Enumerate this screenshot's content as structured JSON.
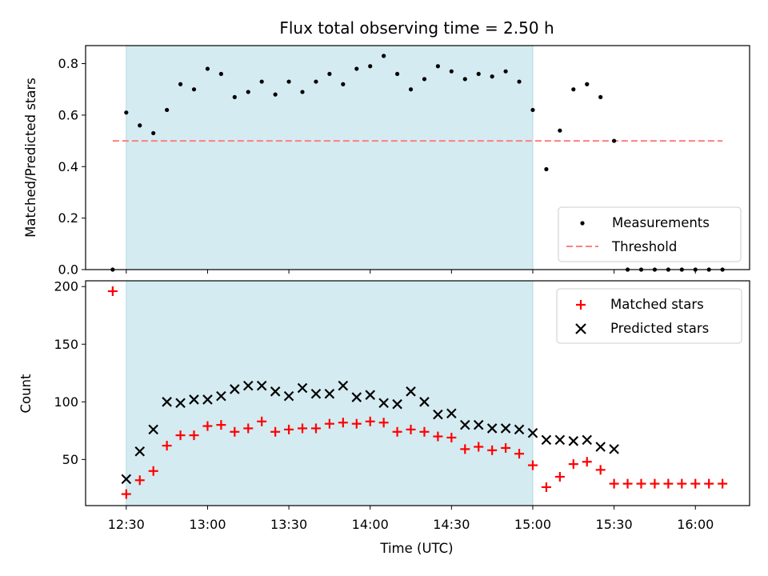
{
  "chart_data": [
    {
      "type": "scatter",
      "panel": "top",
      "title": "Flux total observing time = 2.50 h",
      "ylabel": "Matched/Predicted stars",
      "xlabel": "",
      "xlim": [
        "12:15",
        "16:20"
      ],
      "ylim": [
        0,
        0.87
      ],
      "yticks": [
        0.0,
        0.2,
        0.4,
        0.6,
        0.8
      ],
      "ytick_labels": [
        "0.0",
        "0.2",
        "0.4",
        "0.6",
        "0.8"
      ],
      "shaded_interval": {
        "start": "12:30",
        "end": "15:00",
        "color": "#d4ebf1"
      },
      "legend": {
        "placement": "lower-right",
        "entries": [
          "Measurements",
          "Threshold"
        ]
      },
      "threshold": {
        "name": "Threshold",
        "value": 0.5,
        "x_start": "12:25",
        "x_end": "16:10",
        "color": "#ff7f7f",
        "style": "dashed"
      },
      "series": [
        {
          "name": "Measurements",
          "marker": "dot",
          "color": "#000000",
          "x": [
            "12:25",
            "12:30",
            "12:35",
            "12:40",
            "12:45",
            "12:50",
            "12:55",
            "13:00",
            "13:05",
            "13:10",
            "13:15",
            "13:20",
            "13:25",
            "13:30",
            "13:35",
            "13:40",
            "13:45",
            "13:50",
            "13:55",
            "14:00",
            "14:05",
            "14:10",
            "14:15",
            "14:20",
            "14:25",
            "14:30",
            "14:35",
            "14:40",
            "14:45",
            "14:50",
            "14:55",
            "15:00",
            "15:05",
            "15:10",
            "15:15",
            "15:20",
            "15:25",
            "15:30",
            "15:35",
            "15:40",
            "15:45",
            "15:50",
            "15:55",
            "16:00",
            "16:05",
            "16:10"
          ],
          "y": [
            0.0,
            0.61,
            0.56,
            0.53,
            0.62,
            0.72,
            0.7,
            0.78,
            0.76,
            0.67,
            0.69,
            0.73,
            0.68,
            0.73,
            0.69,
            0.73,
            0.76,
            0.72,
            0.78,
            0.79,
            0.83,
            0.76,
            0.7,
            0.74,
            0.79,
            0.77,
            0.74,
            0.76,
            0.75,
            0.77,
            0.73,
            0.62,
            0.39,
            0.54,
            0.7,
            0.72,
            0.67,
            0.5,
            0.0,
            0.0,
            0.0,
            0.0,
            0.0,
            0.0,
            0.0,
            0.0
          ]
        }
      ]
    },
    {
      "type": "scatter",
      "panel": "bottom",
      "title": "",
      "ylabel": "Count",
      "xlabel": "Time (UTC)",
      "xlim": [
        "12:15",
        "16:20"
      ],
      "ylim": [
        10,
        205
      ],
      "yticks": [
        50,
        100,
        150,
        200
      ],
      "ytick_labels": [
        "50",
        "100",
        "150",
        "200"
      ],
      "xticks": [
        "12:30",
        "13:00",
        "13:30",
        "14:00",
        "14:30",
        "15:00",
        "15:30",
        "16:00"
      ],
      "xtick_labels": [
        "12:30",
        "13:00",
        "13:30",
        "14:00",
        "14:30",
        "15:00",
        "15:30",
        "16:00"
      ],
      "shaded_interval": {
        "start": "12:30",
        "end": "15:00",
        "color": "#d4ebf1"
      },
      "legend": {
        "placement": "upper-right",
        "entries": [
          "Matched stars",
          "Predicted stars"
        ]
      },
      "series": [
        {
          "name": "Matched stars",
          "marker": "plus",
          "color": "#ff0000",
          "x": [
            "12:25",
            "12:30",
            "12:35",
            "12:40",
            "12:45",
            "12:50",
            "12:55",
            "13:00",
            "13:05",
            "13:10",
            "13:15",
            "13:20",
            "13:25",
            "13:30",
            "13:35",
            "13:40",
            "13:45",
            "13:50",
            "13:55",
            "14:00",
            "14:05",
            "14:10",
            "14:15",
            "14:20",
            "14:25",
            "14:30",
            "14:35",
            "14:40",
            "14:45",
            "14:50",
            "14:55",
            "15:00",
            "15:05",
            "15:10",
            "15:15",
            "15:20",
            "15:25",
            "15:30",
            "15:35",
            "15:40",
            "15:45",
            "15:50",
            "15:55",
            "16:00",
            "16:05",
            "16:10"
          ],
          "y": [
            196,
            20,
            32,
            40,
            62,
            71,
            71,
            79,
            80,
            74,
            77,
            83,
            74,
            76,
            77,
            77,
            81,
            82,
            81,
            83,
            82,
            74,
            76,
            74,
            70,
            69,
            59,
            61,
            58,
            60,
            55,
            45,
            26,
            35,
            46,
            48,
            41,
            29,
            29,
            29,
            29,
            29,
            29,
            29,
            29,
            29
          ]
        },
        {
          "name": "Predicted stars",
          "marker": "x",
          "color": "#000000",
          "x": [
            "12:30",
            "12:35",
            "12:40",
            "12:45",
            "12:50",
            "12:55",
            "13:00",
            "13:05",
            "13:10",
            "13:15",
            "13:20",
            "13:25",
            "13:30",
            "13:35",
            "13:40",
            "13:45",
            "13:50",
            "13:55",
            "14:00",
            "14:05",
            "14:10",
            "14:15",
            "14:20",
            "14:25",
            "14:30",
            "14:35",
            "14:40",
            "14:45",
            "14:50",
            "14:55",
            "15:00",
            "15:05",
            "15:10",
            "15:15",
            "15:20",
            "15:25",
            "15:30"
          ],
          "y": [
            33,
            57,
            76,
            100,
            99,
            102,
            102,
            105,
            111,
            114,
            114,
            109,
            105,
            112,
            107,
            107,
            114,
            104,
            106,
            99,
            98,
            109,
            100,
            89,
            90,
            80,
            80,
            77,
            77,
            76,
            73,
            67,
            67,
            66,
            67,
            61,
            59
          ]
        }
      ]
    }
  ]
}
